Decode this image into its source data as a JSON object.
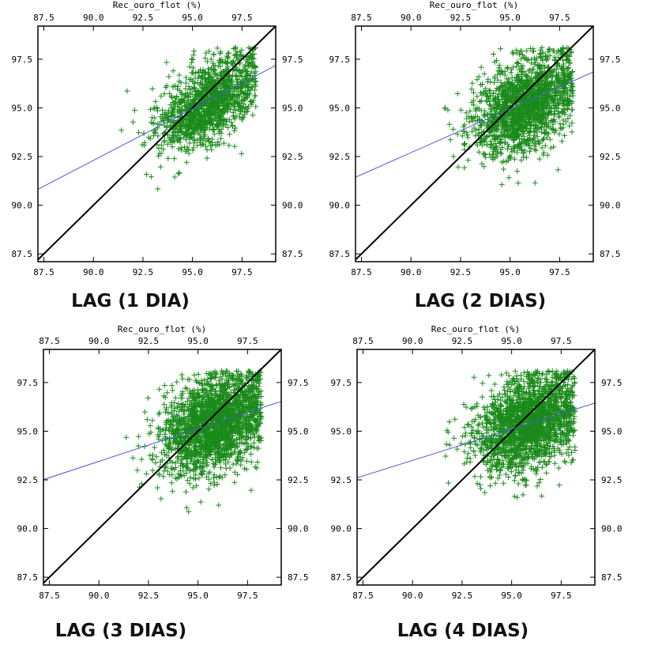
{
  "colors": {
    "points": "#1a8a1a",
    "fit_line": "#4a5bd4",
    "identity_line": "#000000",
    "frame": "#000000"
  },
  "chart_data": [
    {
      "type": "scatter",
      "caption": "LAG (1 DIA)",
      "xlabel_top": "Rec_ouro_flot (%)",
      "xlim": [
        87.2,
        99.2
      ],
      "ylim": [
        87.1,
        99.2
      ],
      "x_ticks": [
        "87.5",
        "90.0",
        "92.5",
        "95.0",
        "97.5"
      ],
      "y_ticks": [
        "87.5",
        "90.0",
        "92.5",
        "95.0",
        "97.5"
      ],
      "marker": "plus",
      "point_cloud": {
        "count": 1400,
        "center": [
          95.8,
          95.3
        ],
        "spread": [
          1.3,
          1.2
        ],
        "correlation": 0.55
      },
      "fit_line": {
        "slope": 0.53,
        "intercept": 44.6
      },
      "identity_line": true
    },
    {
      "type": "scatter",
      "caption": "LAG (2 DIAS)",
      "xlabel_top": "Rec_ouro_flot (%)",
      "xlim": [
        87.2,
        99.2
      ],
      "ylim": [
        87.1,
        99.2
      ],
      "x_ticks": [
        "87.5",
        "90.0",
        "92.5",
        "95.0",
        "97.5"
      ],
      "y_ticks": [
        "87.5",
        "90.0",
        "92.5",
        "95.0",
        "97.5"
      ],
      "marker": "plus",
      "point_cloud": {
        "count": 1800,
        "center": [
          95.8,
          95.2
        ],
        "spread": [
          1.3,
          1.3
        ],
        "correlation": 0.45
      },
      "fit_line": {
        "slope": 0.45,
        "intercept": 52.2
      },
      "identity_line": true
    },
    {
      "type": "scatter",
      "caption": "LAG (3 DIAS)",
      "xlabel_top": "Rec_ouro_flot (%)",
      "xlim": [
        87.2,
        99.2
      ],
      "ylim": [
        87.1,
        99.2
      ],
      "x_ticks": [
        "87.5",
        "90.0",
        "92.5",
        "95.0",
        "97.5"
      ],
      "y_ticks": [
        "87.5",
        "90.0",
        "92.5",
        "95.0",
        "97.5"
      ],
      "marker": "plus",
      "point_cloud": {
        "count": 2200,
        "center": [
          95.8,
          95.4
        ],
        "spread": [
          1.3,
          1.3
        ],
        "correlation": 0.35
      },
      "fit_line": {
        "slope": 0.335,
        "intercept": 63.3
      },
      "identity_line": true
    },
    {
      "type": "scatter",
      "caption": "LAG (4 DIAS)",
      "xlabel_top": "Rec_ouro_flot (%)",
      "xlim": [
        87.2,
        99.2
      ],
      "ylim": [
        87.1,
        99.2
      ],
      "x_ticks": [
        "87.5",
        "90.0",
        "92.5",
        "95.0",
        "97.5"
      ],
      "y_ticks": [
        "87.5",
        "90.0",
        "92.5",
        "95.0",
        "97.5"
      ],
      "marker": "plus",
      "point_cloud": {
        "count": 2000,
        "center": [
          95.8,
          95.4
        ],
        "spread": [
          1.3,
          1.3
        ],
        "correlation": 0.3
      },
      "fit_line": {
        "slope": 0.32,
        "intercept": 64.7
      },
      "identity_line": true
    }
  ]
}
